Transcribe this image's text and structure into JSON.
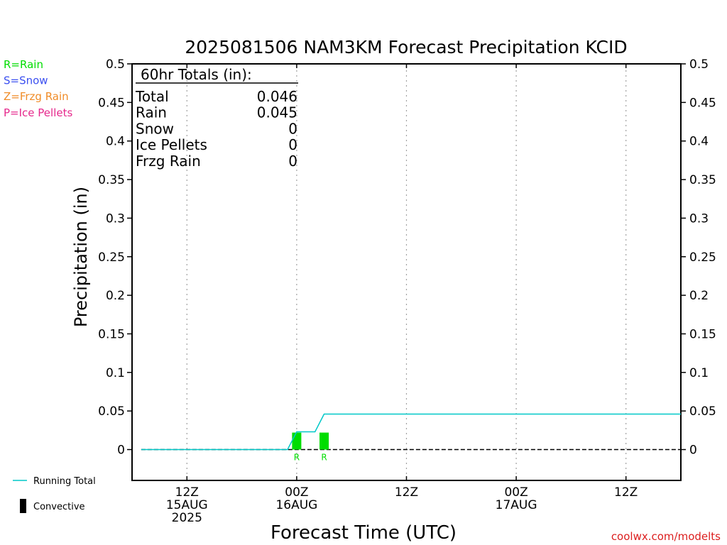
{
  "chart_data": {
    "type": "line",
    "title": "2025081506 NAM3KM Forecast Precipitation KCID",
    "ylabel": "Precipitation (in)",
    "xlabel": "Forecast Time (UTC)",
    "ylim": [
      -0.04,
      0.5
    ],
    "yticks": [
      "0",
      "0.05",
      "0.1",
      "0.15",
      "0.2",
      "0.25",
      "0.3",
      "0.35",
      "0.4",
      "0.45",
      "0.5"
    ],
    "x_axis_start": "2025-08-15 06Z",
    "x_axis_end": "2025-08-17 18Z",
    "x_grid": true,
    "xticks": [
      {
        "time": "2025-08-15 12Z",
        "l1": "12Z",
        "l2": "15AUG",
        "l3": "2025"
      },
      {
        "time": "2025-08-16 00Z",
        "l1": "00Z",
        "l2": "16AUG",
        "l3": ""
      },
      {
        "time": "2025-08-16 12Z",
        "l1": "12Z",
        "l2": "",
        "l3": ""
      },
      {
        "time": "2025-08-17 00Z",
        "l1": "00Z",
        "l2": "17AUG",
        "l3": ""
      },
      {
        "time": "2025-08-17 12Z",
        "l1": "12Z",
        "l2": "",
        "l3": ""
      }
    ],
    "running_total": [
      {
        "time": "2025-08-15 07Z",
        "value": 0
      },
      {
        "time": "2025-08-15 23Z",
        "value": 0
      },
      {
        "time": "2025-08-16 00Z",
        "value": 0.023
      },
      {
        "time": "2025-08-16 02Z",
        "value": 0.023
      },
      {
        "time": "2025-08-16 03Z",
        "value": 0.046
      },
      {
        "time": "2025-08-17 18Z",
        "value": 0.046
      }
    ],
    "bars": [
      {
        "time": "2025-08-16 00Z",
        "value": 0.022,
        "type": "R"
      },
      {
        "time": "2025-08-16 03Z",
        "value": 0.022,
        "type": "R"
      }
    ],
    "totals": {
      "heading": "60hr Totals (in):",
      "rows": [
        {
          "label": "Total",
          "value": "0.046"
        },
        {
          "label": "Rain",
          "value": "0.045"
        },
        {
          "label": "Snow",
          "value": "0"
        },
        {
          "label": "Ice Pellets",
          "value": "0"
        },
        {
          "label": "Frzg Rain",
          "value": "0"
        }
      ]
    },
    "type_legend": [
      {
        "text": "R=Rain",
        "color": "#00dd00"
      },
      {
        "text": "S=Snow",
        "color": "#3c50f0"
      },
      {
        "text": "Z=Frzg Rain",
        "color": "#f08c28"
      },
      {
        "text": "P=Ice Pellets",
        "color": "#e6288c"
      }
    ],
    "series_legend": [
      {
        "text": "Running Total",
        "color": "#00c8c8"
      },
      {
        "text": "Convective",
        "color": "#000000"
      }
    ],
    "colors": {
      "rain_bar": "#00dd00",
      "running_total": "#00c8c8",
      "axis": "#000000",
      "grid": "#a0a0a0"
    }
  },
  "credit": "coolwx.com/modelts"
}
